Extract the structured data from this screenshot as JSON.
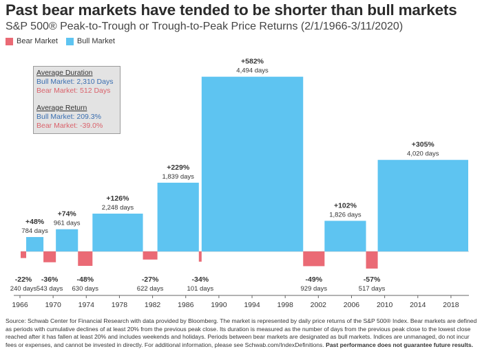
{
  "header": {
    "title": "Past bear markets have tended to be shorter than bull markets",
    "subtitle": "S&P 500® Peak-to-Trough or Trough-to-Peak Price Returns (2/1/1966-3/11/2020)"
  },
  "legend": {
    "bear": "Bear Market",
    "bull": "Bull Market"
  },
  "colors": {
    "bull": "#5ec4f1",
    "bear": "#ea6a75",
    "axis": "#666666"
  },
  "infobox": {
    "duration_title": "Average Duration",
    "duration_bull": "Bull Market:  2,310 Days",
    "duration_bear": "Bear Market:  512 Days",
    "return_title": "Average Return",
    "return_bull": "Bull Market: 209.3%",
    "return_bear": "Bear Market: -39.0%"
  },
  "chart_data": {
    "type": "bar",
    "x_ticks": [
      "1966",
      "1970",
      "1974",
      "1978",
      "1982",
      "1986",
      "1990",
      "1994",
      "1998",
      "2002",
      "2006",
      "2010",
      "2014",
      "2018"
    ],
    "xlim": [
      "1966-02",
      "2020-03"
    ],
    "ylabel": "",
    "series": [
      {
        "name": "Bear Market",
        "bars": [
          {
            "start": "1966-02",
            "end": "1966-10",
            "value": -22,
            "label": "-22%",
            "days": "240 days"
          },
          {
            "start": "1968-11",
            "end": "1970-05",
            "value": -36,
            "label": "-36%",
            "days": "543 days"
          },
          {
            "start": "1973-01",
            "end": "1974-10",
            "value": -48,
            "label": "-48%",
            "days": "630 days"
          },
          {
            "start": "1980-11",
            "end": "1982-08",
            "value": -27,
            "label": "-27%",
            "days": "622 days"
          },
          {
            "start": "1987-08",
            "end": "1987-12",
            "value": -34,
            "label": "-34%",
            "days": "101 days"
          },
          {
            "start": "2000-03",
            "end": "2002-10",
            "value": -49,
            "label": "-49%",
            "days": "929 days"
          },
          {
            "start": "2007-10",
            "end": "2009-03",
            "value": -57,
            "label": "-57%",
            "days": "517 days"
          }
        ]
      },
      {
        "name": "Bull Market",
        "bars": [
          {
            "start": "1966-10",
            "end": "1968-11",
            "value": 48,
            "label": "+48%",
            "days": "784 days"
          },
          {
            "start": "1970-05",
            "end": "1973-01",
            "value": 74,
            "label": "+74%",
            "days": "961 days"
          },
          {
            "start": "1974-10",
            "end": "1980-11",
            "value": 126,
            "label": "+126%",
            "days": "2,248 days"
          },
          {
            "start": "1982-08",
            "end": "1987-08",
            "value": 229,
            "label": "+229%",
            "days": "1,839 days"
          },
          {
            "start": "1987-12",
            "end": "2000-03",
            "value": 582,
            "label": "+582%",
            "days": "4,494 days"
          },
          {
            "start": "2002-10",
            "end": "2007-10",
            "value": 102,
            "label": "+102%",
            "days": "1,826 days"
          },
          {
            "start": "2009-03",
            "end": "2020-02",
            "value": 305,
            "label": "+305%",
            "days": "4,020 days"
          }
        ]
      }
    ]
  },
  "footer": {
    "source": "Source: Schwab Center for Financial Research with data provided by Bloomberg. The market is represented by daily price returns of the S&P 500® Index. Bear markets are defined as periods with cumulative declines of at least 20% from the previous peak close. Its duration is measured as the number of days from the previous peak close to the lowest close reached after it has fallen at least 20% and includes weekends and holidays. Periods between bear markets are designated as bull markets. Indices are unmanaged, do not incur fees or expenses, and cannot be invested in directly. For additional information, please see Schwab.com/IndexDefinitions. ",
    "disclaimer": "Past performance does not guarantee future results."
  }
}
